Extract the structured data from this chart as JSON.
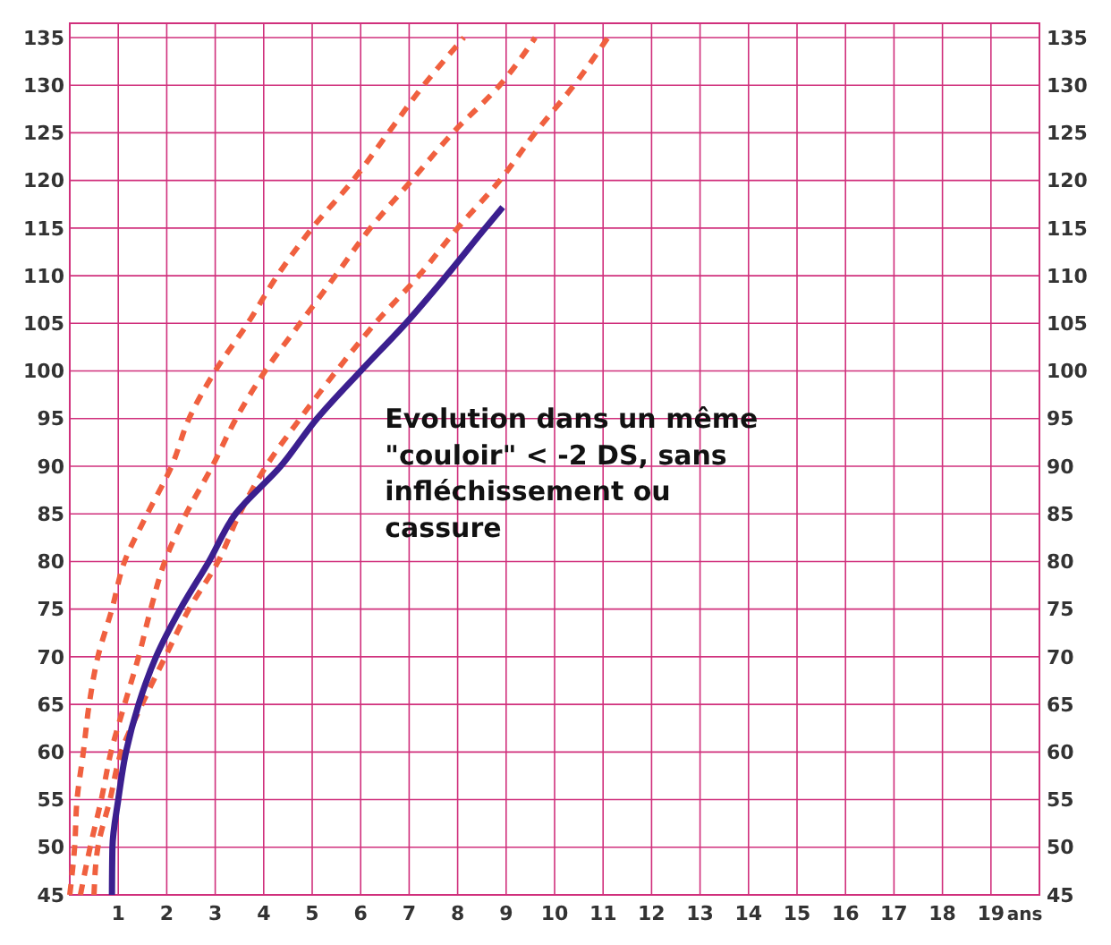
{
  "chart_data": {
    "type": "line",
    "xlabel": "ans",
    "xlim": [
      0,
      20
    ],
    "xticks": [
      1,
      2,
      3,
      4,
      5,
      6,
      7,
      8,
      9,
      10,
      11,
      12,
      13,
      14,
      15,
      16,
      17,
      18,
      19
    ],
    "ylim": [
      45,
      136.5
    ],
    "yticks": [
      45,
      50,
      55,
      60,
      65,
      70,
      75,
      80,
      85,
      90,
      95,
      100,
      105,
      110,
      115,
      120,
      125,
      130,
      135
    ],
    "y2lim": [
      45,
      136.5
    ],
    "y2ticks": [
      45,
      50,
      55,
      60,
      65,
      70,
      75,
      80,
      85,
      90,
      95,
      100,
      105,
      110,
      115,
      120,
      125,
      130,
      135
    ],
    "grid": true,
    "marker": "none",
    "series": [
      {
        "color": "#f0603f",
        "line_style": "dashed",
        "x": [
          0,
          0.1,
          0.15,
          0.28,
          0.4,
          0.58,
          0.87,
          1.13,
          1.6,
          2.1,
          2.46,
          3.0,
          3.67,
          4.28,
          5.0,
          5.84,
          6.57,
          7.3,
          8.13
        ],
        "values": [
          45,
          50,
          55,
          60,
          65,
          70,
          75,
          80,
          85,
          90,
          95,
          100,
          105,
          110,
          115,
          120,
          125,
          130,
          135
        ]
      },
      {
        "color": "#f0603f",
        "line_style": "dashed",
        "x": [
          0.22,
          0.42,
          0.65,
          0.85,
          1.13,
          1.42,
          1.67,
          1.96,
          2.4,
          2.94,
          3.43,
          4.03,
          4.75,
          5.48,
          6.2,
          7.05,
          7.9,
          8.87,
          9.6
        ],
        "values": [
          45,
          50,
          55,
          60,
          65,
          70,
          75,
          80,
          85,
          90,
          95,
          100,
          105,
          110,
          115,
          120,
          125,
          130,
          135
        ]
      },
      {
        "color": "#f0603f",
        "line_style": "dashed",
        "x": [
          0.5,
          0.58,
          0.83,
          1.06,
          1.49,
          1.97,
          2.46,
          3.06,
          3.5,
          4.05,
          4.75,
          5.5,
          6.3,
          7.2,
          8.0,
          8.87,
          9.6,
          10.4,
          11.1
        ],
        "values": [
          45,
          50,
          55,
          60,
          65,
          70,
          75,
          80,
          85,
          90,
          95,
          100,
          105,
          110,
          115,
          120,
          125,
          130,
          135
        ]
      },
      {
        "color": "#3b1f8f",
        "line_style": "solid",
        "x": [
          0.87,
          0.88,
          1.0,
          1.16,
          1.42,
          1.78,
          2.28,
          2.87,
          3.42,
          4.35,
          5.1,
          6.0,
          6.93,
          7.77,
          8.57,
          8.93
        ],
        "values": [
          45,
          50,
          55,
          60,
          65,
          70,
          75,
          80,
          85,
          90,
          95,
          100,
          105,
          110,
          115,
          117.2
        ]
      }
    ],
    "annotations": [
      "Evolution dans un même \"couloir\" < -2 DS, sans infléchissement ou cassure"
    ]
  }
}
